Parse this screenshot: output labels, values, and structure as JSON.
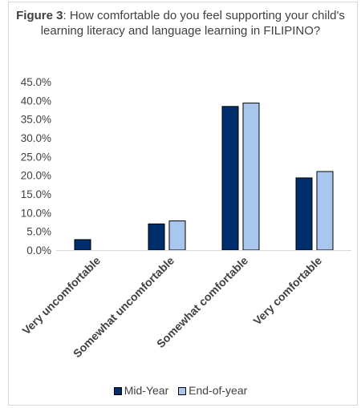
{
  "chart_data": {
    "type": "bar",
    "title_prefix": "Figure 3",
    "title_rest": ": How comfortable do you feel supporting your child's learning literacy and language learning in FILIPINO?",
    "categories": [
      "Very uncomfortable",
      "Somewhat uncomfortable",
      "Somewhat comfortable",
      "Very comfortable"
    ],
    "series": [
      {
        "name": "Mid-Year",
        "color": "#002d6b",
        "values": [
          2.8,
          7.0,
          38.4,
          19.3
        ]
      },
      {
        "name": "End-of-year",
        "color": "#a9c7ee",
        "values": [
          0,
          7.8,
          39.3,
          21.0
        ]
      }
    ],
    "ylim": [
      0,
      45
    ],
    "yticks": [
      "0.0%",
      "5.0%",
      "10.0%",
      "15.0%",
      "20.0%",
      "25.0%",
      "30.0%",
      "35.0%",
      "40.0%",
      "45.0%"
    ],
    "xlabel": "",
    "ylabel": "",
    "grid": false,
    "legend_position": "bottom"
  }
}
